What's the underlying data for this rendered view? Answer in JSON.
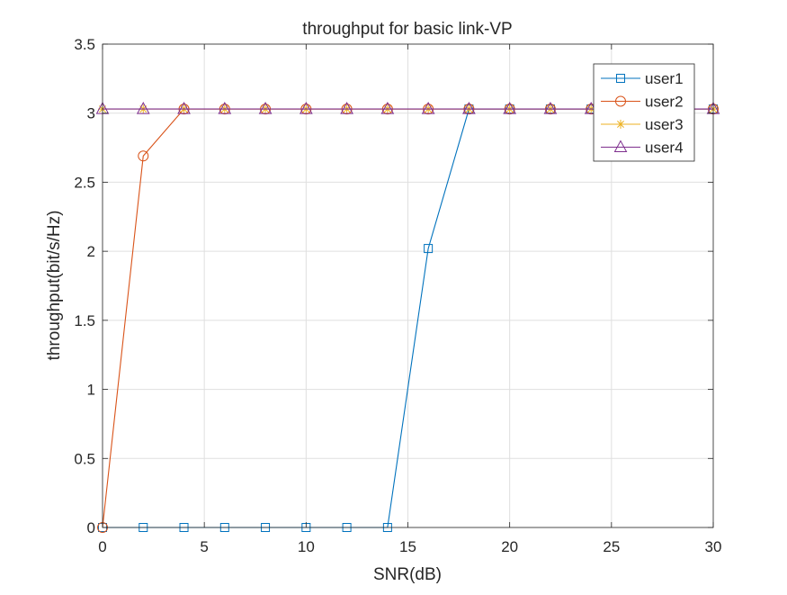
{
  "chart_data": {
    "type": "line",
    "title": "throughput for basic link-VP",
    "xlabel": "SNR(dB)",
    "ylabel": "throughput(bit/s/Hz)",
    "xlim": [
      0,
      30
    ],
    "ylim": [
      0,
      3.5
    ],
    "xticks": [
      "0",
      "5",
      "10",
      "15",
      "20",
      "25",
      "30"
    ],
    "yticks": [
      "0",
      "0.5",
      "1",
      "1.5",
      "2",
      "2.5",
      "3",
      "3.5"
    ],
    "grid": true,
    "legend_position": "top-right",
    "x": [
      0,
      2,
      4,
      6,
      8,
      10,
      12,
      14,
      16,
      18,
      20,
      22,
      24,
      26,
      28,
      30
    ],
    "series": [
      {
        "name": "user1",
        "color": "#0072BD",
        "marker": "square",
        "values": [
          0,
          0,
          0,
          0,
          0,
          0,
          0,
          0,
          2.02,
          3.03,
          3.03,
          3.03,
          3.03,
          3.03,
          3.03,
          3.03
        ]
      },
      {
        "name": "user2",
        "color": "#D95319",
        "marker": "circle",
        "values": [
          0,
          2.69,
          3.03,
          3.03,
          3.03,
          3.03,
          3.03,
          3.03,
          3.03,
          3.03,
          3.03,
          3.03,
          3.03,
          3.03,
          3.03,
          3.03
        ]
      },
      {
        "name": "user3",
        "color": "#EDB120",
        "marker": "asterisk",
        "values": [
          3.03,
          3.03,
          3.03,
          3.03,
          3.03,
          3.03,
          3.03,
          3.03,
          3.03,
          3.03,
          3.03,
          3.03,
          3.03,
          3.03,
          3.03,
          3.03
        ]
      },
      {
        "name": "user4",
        "color": "#7E2F8E",
        "marker": "triangle",
        "values": [
          3.03,
          3.03,
          3.03,
          3.03,
          3.03,
          3.03,
          3.03,
          3.03,
          3.03,
          3.03,
          3.03,
          3.03,
          3.03,
          3.03,
          3.03,
          3.03
        ]
      }
    ]
  }
}
